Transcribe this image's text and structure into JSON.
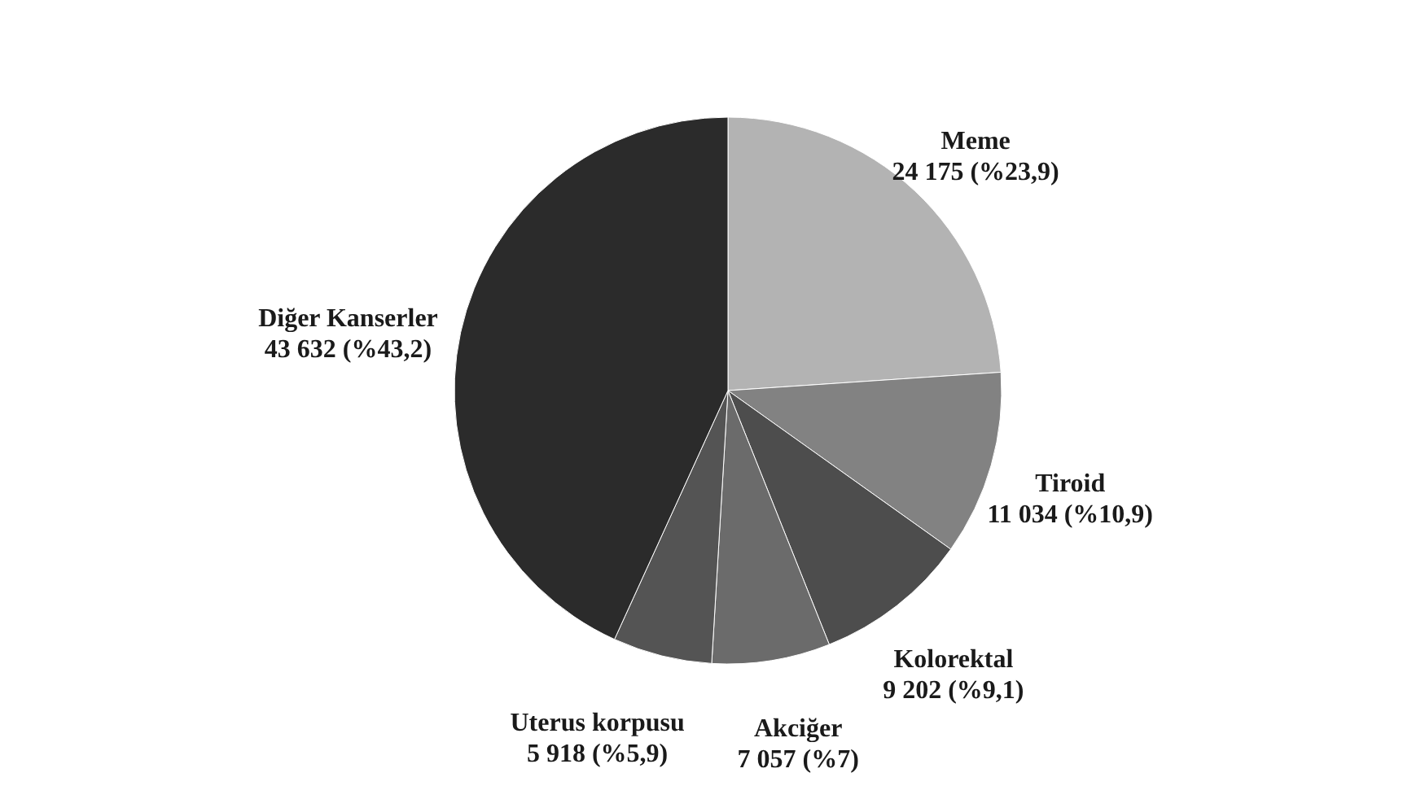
{
  "chart_data": {
    "type": "pie",
    "categories": [
      "Meme",
      "Tiroid",
      "Kolorektal",
      "Akciğer",
      "Uterus korpusu",
      "Diğer Kanserler"
    ],
    "values": [
      24175,
      11034,
      9202,
      7057,
      5918,
      43632
    ],
    "value_labels": [
      "24 175 (%23,9)",
      "11 034 (%10,9)",
      "9 202 (%9,1)",
      "7 057 (%7)",
      "5 918 (%5,9)",
      "43 632 (%43,2)"
    ],
    "colors": [
      "#b3b3b3",
      "#828282",
      "#4d4d4d",
      "#6b6b6b",
      "#545454",
      "#2b2b2b"
    ]
  }
}
